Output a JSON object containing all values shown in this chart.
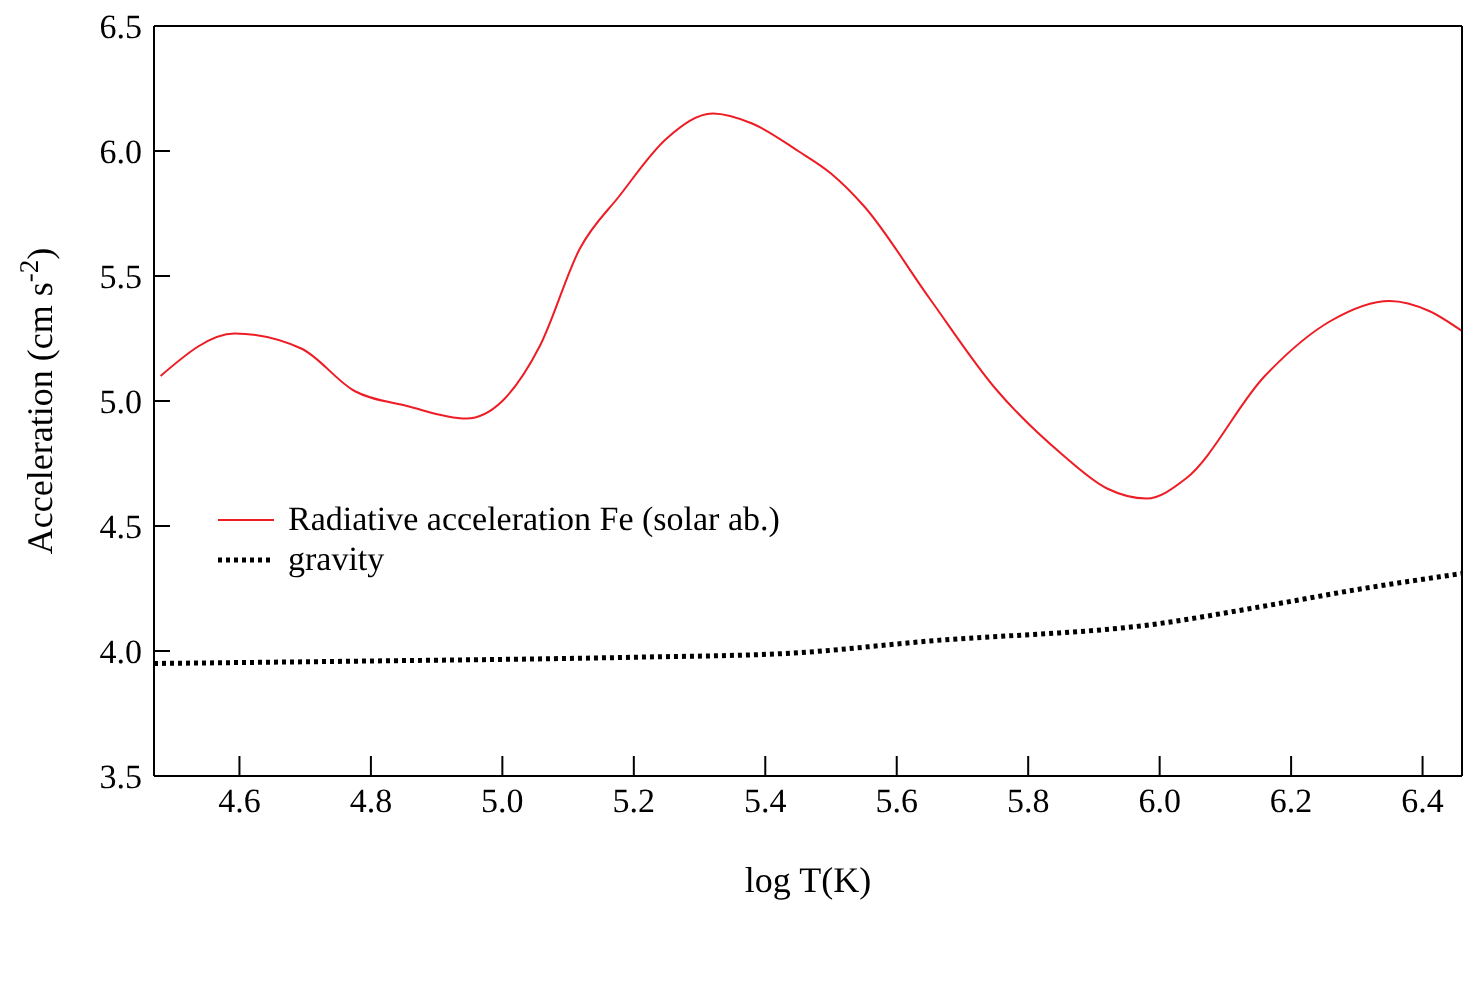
{
  "chart_data": {
    "type": "line",
    "xlabel": "log T(K)",
    "ylabel": "Acceleration (cm s$^{-2}$)",
    "xlim": [
      4.47,
      6.46
    ],
    "xticks": [
      4.6,
      4.8,
      {
        "value": 5,
        "label": "5.0"
      },
      5.2,
      5.4,
      5.6,
      5.8,
      {
        "value": 6,
        "label": "6.0"
      },
      6.2,
      6.4
    ],
    "ylim": [
      3.5,
      6.5
    ],
    "yticks": [
      3.5,
      {
        "value": 4,
        "label": "4.0"
      },
      4.5,
      {
        "value": 5,
        "label": "5.0"
      },
      5.5,
      {
        "value": 6,
        "label": "6.0"
      },
      6.5
    ],
    "legend": "left",
    "marker": "none",
    "series": [
      {
        "name": "Radiative acceleration Fe (solar ab.)",
        "color": "#ee1c24",
        "line_style": "solid",
        "x": [
          4.48,
          4.593,
          4.694,
          4.775,
          4.855,
          4.945,
          5.0,
          5.057,
          5.118,
          5.178,
          5.25,
          5.32,
          5.38,
          5.45,
          5.5,
          5.55,
          5.65,
          5.75,
          5.85,
          5.92,
          5.98,
          6.04,
          6.16,
          6.26,
          6.35,
          6.41,
          6.46
        ],
        "values": [
          5.1,
          5.27,
          5.21,
          5.04,
          4.98,
          4.93,
          5.0,
          5.22,
          5.61,
          5.82,
          6.05,
          6.15,
          6.11,
          6.0,
          5.91,
          5.78,
          5.41,
          5.05,
          4.79,
          4.65,
          4.61,
          4.69,
          5.1,
          5.32,
          5.4,
          5.36,
          5.28
        ]
      },
      {
        "name": "gravity",
        "color": "#000000",
        "line_style": "dotted",
        "x": [
          4.47,
          4.8,
          5.2,
          5.43,
          5.65,
          6.0,
          6.16,
          6.31,
          6.46
        ],
        "values": [
          3.95,
          3.96,
          3.975,
          3.99,
          4.04,
          4.11,
          4.18,
          4.25,
          4.31
        ]
      }
    ]
  }
}
